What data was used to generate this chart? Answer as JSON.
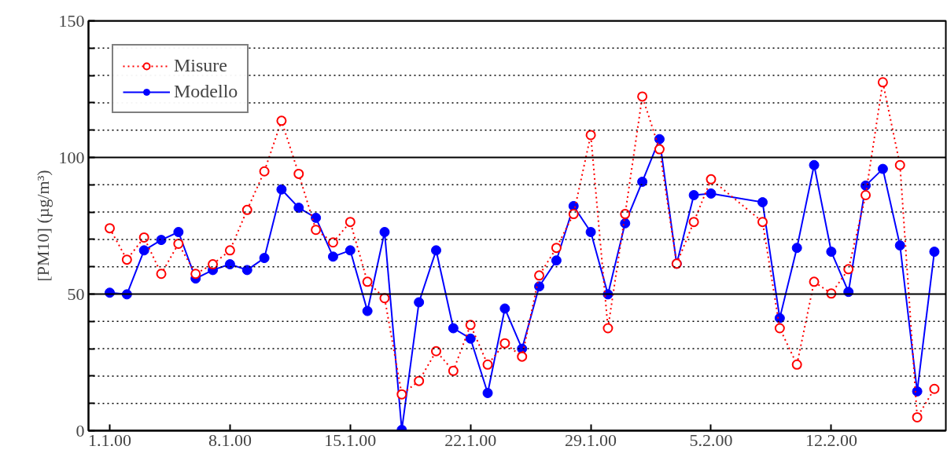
{
  "chart_data": {
    "type": "line",
    "ylabel": "[PM10] (µg/m³)",
    "x": [
      "2000-01-01",
      "2000-01-02",
      "2000-01-03",
      "2000-01-04",
      "2000-01-05",
      "2000-01-06",
      "2000-01-07",
      "2000-01-08",
      "2000-01-09",
      "2000-01-10",
      "2000-01-11",
      "2000-01-12",
      "2000-01-13",
      "2000-01-14",
      "2000-01-15",
      "2000-01-16",
      "2000-01-17",
      "2000-01-18",
      "2000-01-19",
      "2000-01-20",
      "2000-01-21",
      "2000-01-22",
      "2000-01-23",
      "2000-01-24",
      "2000-01-25",
      "2000-01-26",
      "2000-01-27",
      "2000-01-28",
      "2000-01-29",
      "2000-01-30",
      "2000-01-31",
      "2000-02-01",
      "2000-02-02",
      "2000-02-03",
      "2000-02-04",
      "2000-02-05",
      "2000-02-08",
      "2000-02-09",
      "2000-02-10",
      "2000-02-11",
      "2000-02-12",
      "2000-02-13",
      "2000-02-14",
      "2000-02-15",
      "2000-02-16",
      "2000-02-17",
      "2000-02-18"
    ],
    "series": [
      {
        "name": "Misure",
        "color": "#ff0000",
        "line_style": "dotted",
        "marker": "circle_open",
        "values": [
          74.1,
          62.6,
          70.7,
          57.4,
          68.4,
          57.4,
          60.9,
          66,
          80.8,
          94.9,
          113.4,
          94,
          73.5,
          68.9,
          76.4,
          54.5,
          48.5,
          13.3,
          18.2,
          29.1,
          21.9,
          38.7,
          24.2,
          32,
          27.1,
          56.8,
          66.9,
          79.3,
          108.2,
          37.5,
          79.3,
          122.3,
          103,
          61.1,
          76.4,
          92,
          76.4,
          37.5,
          24.2,
          54.5,
          50.2,
          59.1,
          86.2,
          127.5,
          97.2,
          4.9,
          15.3
        ]
      },
      {
        "name": "Modello",
        "color": "#0000ff",
        "line_style": "solid",
        "marker": "circle",
        "values": [
          50.5,
          49.9,
          66,
          69.8,
          72.7,
          55.7,
          58.8,
          60.9,
          58.8,
          63.2,
          88.3,
          81.6,
          77.9,
          63.7,
          66,
          43.8,
          72.7,
          0.3,
          47,
          66,
          37.5,
          33.7,
          13.8,
          44.7,
          30,
          52.8,
          62.3,
          82.2,
          72.7,
          49.9,
          75.9,
          91.1,
          106.7,
          61.1,
          86.2,
          86.8,
          83.6,
          41.2,
          66.9,
          97.2,
          65.5,
          50.8,
          89.7,
          95.8,
          67.8,
          14.4,
          65.5
        ]
      }
    ],
    "xlim": [
      "1999-12-30T18:20",
      "2000-02-18T16:00"
    ],
    "xticks": [
      {
        "value": "2000-01-01",
        "label": "1.1.00"
      },
      {
        "value": "2000-01-08",
        "label": "8.1.00"
      },
      {
        "value": "2000-01-15",
        "label": "15.1.00"
      },
      {
        "value": "2000-01-22",
        "label": "22.1.00"
      },
      {
        "value": "2000-01-29",
        "label": "29.1.00"
      },
      {
        "value": "2000-02-05",
        "label": "5.2.00"
      },
      {
        "value": "2000-02-12",
        "label": "12.2.00"
      }
    ],
    "ylim": [
      0,
      150
    ],
    "yticks": [
      0,
      {
        "value": 10,
        "label": null
      },
      {
        "value": 20,
        "label": null
      },
      {
        "value": 30,
        "label": null
      },
      {
        "value": 40,
        "label": null
      },
      50,
      {
        "value": 60,
        "label": null
      },
      {
        "value": 70,
        "label": null
      },
      {
        "value": 80,
        "label": null
      },
      {
        "value": 90,
        "label": null
      },
      100,
      {
        "value": 110,
        "label": null
      },
      {
        "value": 120,
        "label": null
      },
      {
        "value": 130,
        "label": null
      },
      {
        "value": 140,
        "label": null
      },
      150
    ],
    "grid": "y",
    "legend": "top left"
  }
}
